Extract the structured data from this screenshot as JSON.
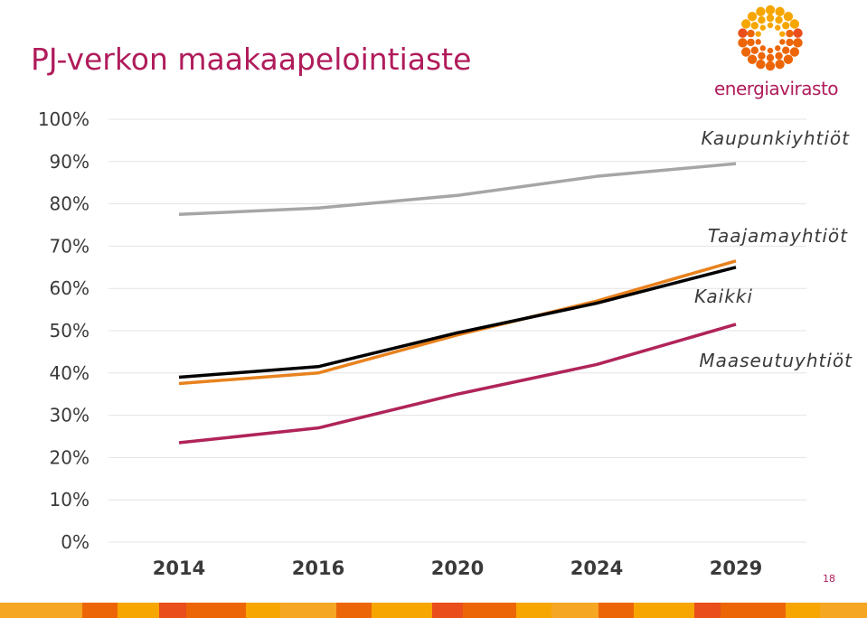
{
  "slide": {
    "title": "PJ-verkon maakaapelointiaste",
    "page_number": "18"
  },
  "logo": {
    "text": "energiavirasto",
    "brand_color": "#b01c5b",
    "sun_colors": [
      "#f7a600",
      "#ec6608",
      "#e94e1b"
    ]
  },
  "footer": {
    "colors": [
      "#f5a623",
      "#ec6608",
      "#f7a600",
      "#e94e1b",
      "#ec6608",
      "#f7a600"
    ]
  },
  "chart_data": {
    "type": "line",
    "categories": [
      "2014",
      "2016",
      "2020",
      "2024",
      "2029"
    ],
    "ylim": [
      0,
      100
    ],
    "yticks": [
      "0%",
      "10%",
      "20%",
      "30%",
      "40%",
      "50%",
      "60%",
      "70%",
      "80%",
      "90%",
      "100%"
    ],
    "grid": true,
    "series": [
      {
        "name": "Kaupunkiyhtiöt",
        "color": "#a6a6a6",
        "values": [
          77.5,
          79,
          82,
          86.5,
          89.5
        ]
      },
      {
        "name": "Taajamayhtiöt",
        "color": "#e8821e",
        "values": [
          37.5,
          40,
          49,
          57,
          66.5
        ]
      },
      {
        "name": "Kaikki",
        "color": "#000000",
        "values": [
          39,
          41.5,
          49.5,
          56.5,
          65
        ]
      },
      {
        "name": "Maaseutuyhtiöt",
        "color": "#b0245a",
        "values": [
          23.5,
          27,
          35,
          42,
          51.5
        ]
      }
    ]
  }
}
